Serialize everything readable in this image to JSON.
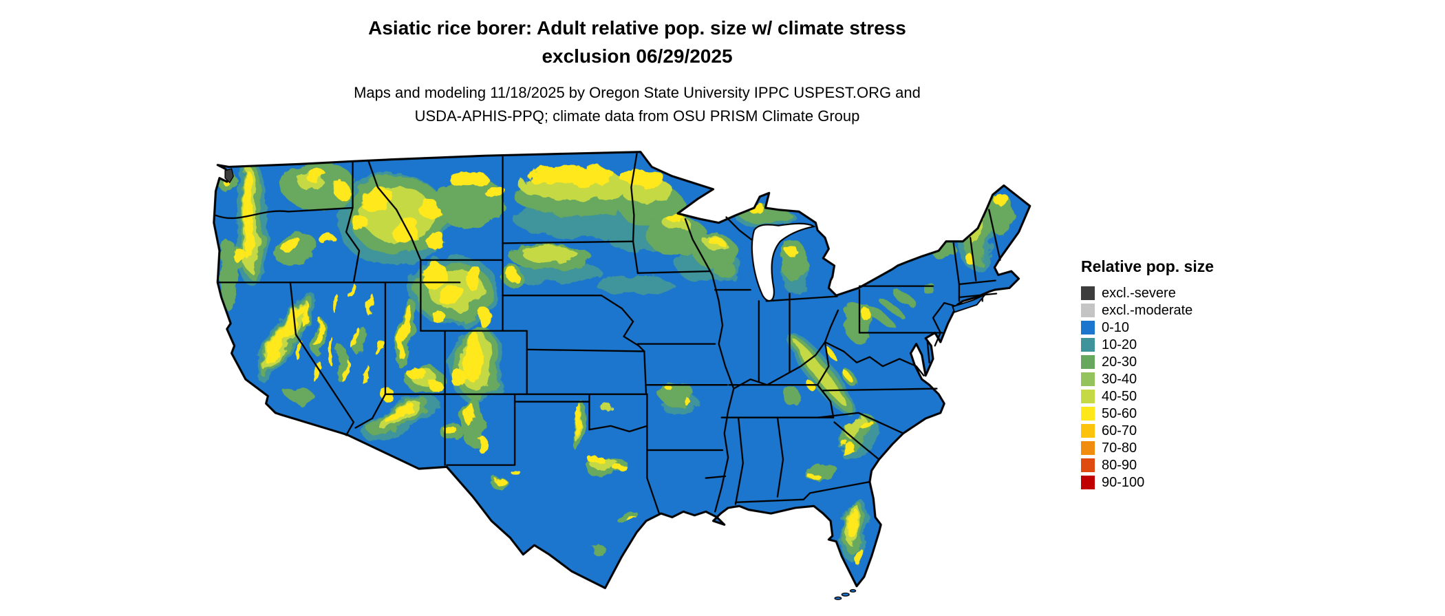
{
  "header": {
    "title_line1": "Asiatic rice borer: Adult relative pop. size w/ climate stress",
    "title_line2": "exclusion 06/29/2025",
    "subtitle_line1": "Maps and modeling 11/18/2025 by Oregon State University IPPC USPEST.ORG and",
    "subtitle_line2": "USDA-APHIS-PPQ; climate data from OSU PRISM Climate Group"
  },
  "map": {
    "name": "continental-us-relative-population-map",
    "base_color": "#1d76cd"
  },
  "legend": {
    "title": "Relative pop. size",
    "items": [
      {
        "label": "excl.-severe",
        "color": "#3d3d3d"
      },
      {
        "label": "excl.-moderate",
        "color": "#c4c4c4"
      },
      {
        "label": "0-10",
        "color": "#1d76cd"
      },
      {
        "label": "10-20",
        "color": "#3f949c"
      },
      {
        "label": "20-30",
        "color": "#67a85e"
      },
      {
        "label": "30-40",
        "color": "#94c25c"
      },
      {
        "label": "40-50",
        "color": "#c5d944"
      },
      {
        "label": "50-60",
        "color": "#ffe81a"
      },
      {
        "label": "60-70",
        "color": "#fcc30c"
      },
      {
        "label": "70-80",
        "color": "#f08c0e"
      },
      {
        "label": "80-90",
        "color": "#de4a10"
      },
      {
        "label": "90-100",
        "color": "#c00000"
      }
    ]
  }
}
